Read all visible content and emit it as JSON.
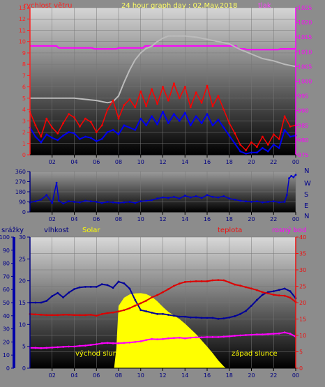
{
  "chart_data": [
    {
      "type": "line",
      "title": "24 hour graph day : 02.May.2018",
      "x_ticks": [
        "02",
        "04",
        "06",
        "08",
        "10",
        "12",
        "14",
        "16",
        "18",
        "20",
        "22",
        "00"
      ],
      "left_axis": {
        "label": "rychlost větru",
        "ticks": [
          0,
          1,
          2,
          3,
          4,
          5,
          6,
          7,
          8,
          9,
          10,
          11,
          12,
          13
        ],
        "ylim": [
          0,
          13
        ]
      },
      "right_axis": {
        "label": "tlak",
        "ticks": [
          975,
          980,
          985,
          990,
          995,
          1000,
          1005,
          1010,
          1015,
          1020,
          1025
        ],
        "ylim": [
          975,
          1025
        ]
      },
      "series": [
        {
          "name": "tlak",
          "color": "#ff00ff",
          "axis": "right",
          "x": [
            0,
            2.4,
            2.6,
            5.6,
            5.8,
            7.8,
            8.0,
            10.2,
            10.4,
            18.6,
            18.8,
            19.4,
            19.6,
            22.4,
            22.6,
            24
          ],
          "y": [
            1012,
            1012,
            1011.3,
            1011.3,
            1011,
            1011,
            1011.3,
            1011.3,
            1012,
            1012,
            1011,
            1011,
            1010.7,
            1010.7,
            1011,
            1011
          ]
        },
        {
          "name": "",
          "color": "#bbbbbb",
          "axis": "left",
          "x": [
            0,
            1,
            2,
            3,
            4,
            5,
            6,
            7,
            7.5,
            8,
            8.5,
            9,
            9.5,
            10,
            10.5,
            11,
            11.5,
            12,
            12.5,
            13,
            14,
            15,
            16,
            17,
            18,
            19,
            20,
            21,
            22,
            23,
            24
          ],
          "y": [
            5.0,
            5.0,
            5.0,
            5.0,
            5.0,
            4.9,
            4.8,
            4.6,
            4.7,
            5.2,
            6.4,
            7.5,
            8.4,
            9.0,
            9.4,
            9.6,
            10.0,
            10.3,
            10.5,
            10.5,
            10.5,
            10.4,
            10.2,
            10.0,
            9.8,
            9.3,
            8.9,
            8.5,
            8.3,
            8.0,
            7.8
          ]
        },
        {
          "name": "",
          "color": "#ff0000",
          "axis": "left",
          "x": [
            0,
            0.5,
            1,
            1.5,
            2,
            2.5,
            3,
            3.5,
            4,
            4.5,
            5,
            5.5,
            6,
            6.5,
            7,
            7.5,
            8,
            8.5,
            9,
            9.5,
            10,
            10.5,
            11,
            11.5,
            12,
            12.5,
            13,
            13.5,
            14,
            14.5,
            15,
            15.5,
            16,
            16.5,
            17,
            17.5,
            18,
            18.5,
            19,
            19.5,
            20,
            20.5,
            21,
            21.5,
            22,
            22.5,
            23,
            23.5,
            24
          ],
          "y": [
            3.8,
            2.6,
            1.6,
            3.2,
            2.4,
            1.9,
            2.8,
            3.6,
            3.3,
            2.5,
            3.2,
            2.9,
            2.0,
            2.6,
            4.0,
            4.8,
            3.2,
            4.4,
            4.9,
            4.2,
            5.6,
            4.3,
            5.8,
            4.5,
            6.0,
            4.8,
            6.3,
            5.0,
            6.0,
            4.2,
            5.5,
            4.6,
            6.1,
            4.3,
            5.2,
            4.0,
            2.8,
            1.9,
            0.9,
            0.4,
            1.1,
            0.7,
            1.6,
            0.9,
            1.8,
            1.4,
            3.4,
            2.5,
            2.6
          ]
        },
        {
          "name": "",
          "color": "#0000ee",
          "axis": "left",
          "x": [
            0,
            0.5,
            1,
            1.5,
            2,
            2.5,
            3,
            3.5,
            4,
            4.5,
            5,
            5.5,
            6,
            6.5,
            7,
            7.5,
            8,
            8.5,
            9,
            9.5,
            10,
            10.5,
            11,
            11.5,
            12,
            12.5,
            13,
            13.5,
            14,
            14.5,
            15,
            15.5,
            16,
            16.5,
            17,
            17.5,
            18,
            18.5,
            19,
            19.5,
            20,
            20.5,
            21,
            21.5,
            22,
            22.5,
            23,
            23.5,
            24
          ],
          "y": [
            2.4,
            1.6,
            1.1,
            1.8,
            1.5,
            1.3,
            1.7,
            2.0,
            1.9,
            1.4,
            1.6,
            1.5,
            1.2,
            1.4,
            2.0,
            2.2,
            1.8,
            2.6,
            2.4,
            2.2,
            3.2,
            2.6,
            3.4,
            2.7,
            3.8,
            2.8,
            3.6,
            3.0,
            3.7,
            2.6,
            3.4,
            2.8,
            3.6,
            2.6,
            3.1,
            2.4,
            1.7,
            1.0,
            0.3,
            0.1,
            0.2,
            0.2,
            0.6,
            0.3,
            0.9,
            0.6,
            2.2,
            1.6,
            1.7
          ]
        }
      ]
    },
    {
      "type": "line",
      "x_ticks": [
        "02",
        "04",
        "06",
        "08",
        "10",
        "12",
        "14",
        "16",
        "18",
        "20",
        "22",
        "00"
      ],
      "left_axis": {
        "ticks": [
          0,
          90,
          180,
          270,
          360
        ],
        "ylim": [
          0,
          360
        ]
      },
      "direction_labels": [
        "N",
        "W",
        "S",
        "E",
        "N"
      ],
      "series": [
        {
          "name": "",
          "color": "#0000cc",
          "x": [
            0,
            0.5,
            1,
            1.5,
            2,
            2.4,
            2.6,
            3,
            3.5,
            4,
            4.5,
            5,
            5.5,
            6,
            6.5,
            7,
            7.5,
            8,
            8.5,
            9,
            9.5,
            10,
            10.5,
            11,
            11.5,
            12,
            12.5,
            13,
            13.5,
            14,
            14.5,
            15,
            15.5,
            16,
            16.5,
            17,
            17.5,
            18,
            18.5,
            19,
            19.5,
            20,
            20.5,
            21,
            21.5,
            22,
            22.5,
            23,
            23.2,
            23.4,
            23.6,
            23.8,
            24
          ],
          "y": [
            85,
            95,
            110,
            150,
            80,
            260,
            100,
            75,
            95,
            90,
            85,
            100,
            95,
            90,
            80,
            90,
            85,
            80,
            85,
            90,
            80,
            95,
            100,
            105,
            120,
            130,
            125,
            135,
            120,
            145,
            130,
            140,
            125,
            150,
            135,
            130,
            140,
            120,
            110,
            100,
            95,
            90,
            95,
            85,
            90,
            95,
            85,
            90,
            150,
            300,
            320,
            310,
            330
          ]
        }
      ]
    },
    {
      "type": "area",
      "x_ticks": [
        "02",
        "04",
        "06",
        "08",
        "10",
        "12",
        "14",
        "16",
        "18",
        "20",
        "22",
        "00"
      ],
      "axes": [
        {
          "label": "srážky",
          "ticks": [
            0,
            10,
            20,
            30,
            40,
            50,
            60,
            70,
            80,
            90,
            100
          ],
          "ylim": [
            0,
            100
          ]
        },
        {
          "label": "vlhkost",
          "ticks": [
            0,
            5,
            10,
            15,
            20,
            25,
            30
          ],
          "ylim": [
            0,
            30
          ]
        },
        {
          "label": "Solar"
        },
        {
          "label": "teplota",
          "ticks": [
            0,
            5,
            10,
            15,
            20,
            25,
            30,
            35,
            40
          ],
          "ylim": [
            0,
            40
          ]
        },
        {
          "label": "rosný bod"
        }
      ],
      "annotations": [
        "východ slunce",
        "západ slunce"
      ],
      "series": [
        {
          "name": "Solar",
          "color": "#ffff00",
          "axis": "teplota",
          "x": [
            7.6,
            7.8,
            8.0,
            8.5,
            9.0,
            9.5,
            10.0,
            10.5,
            11.0,
            11.5,
            12.0,
            12.5,
            13.0,
            13.5,
            14.0,
            14.5,
            15.0,
            15.5,
            16.0,
            16.5,
            17.0,
            17.5,
            17.7
          ],
          "y": [
            0,
            6,
            19,
            21.5,
            22.5,
            22.8,
            22.9,
            22.6,
            21.8,
            20.4,
            18.7,
            17.2,
            16.1,
            15.0,
            13.6,
            12.0,
            10.4,
            8.5,
            6.6,
            4.6,
            2.4,
            0.6,
            0
          ]
        },
        {
          "name": "vlhkost",
          "color": "#000099",
          "axis": "vlhkost",
          "x": [
            0,
            0.5,
            1,
            1.5,
            2,
            2.5,
            3,
            3.5,
            4,
            4.5,
            5,
            5.5,
            6,
            6.5,
            7,
            7.5,
            8,
            8.5,
            9,
            9.5,
            10,
            10.5,
            11,
            11.5,
            12,
            12.5,
            13,
            13.5,
            14,
            14.5,
            15,
            15.5,
            16,
            16.5,
            17,
            17.5,
            18,
            18.5,
            19,
            19.5,
            20,
            20.5,
            21,
            21.5,
            22,
            22.5,
            23,
            23.5,
            24
          ],
          "y": [
            15,
            15,
            15,
            15.4,
            16.5,
            17.2,
            16.2,
            17.3,
            18.1,
            18.5,
            18.6,
            18.6,
            18.6,
            19.2,
            19.0,
            18.4,
            19.8,
            19.4,
            18.2,
            15.6,
            13.3,
            13.0,
            12.7,
            12.4,
            12.4,
            12.2,
            12.0,
            11.8,
            11.8,
            11.6,
            11.6,
            11.5,
            11.5,
            11.5,
            11.3,
            11.4,
            11.6,
            11.9,
            12.4,
            13.1,
            14.3,
            15.6,
            16.8,
            17.4,
            17.6,
            17.9,
            18.2,
            17.6,
            16.0
          ]
        },
        {
          "name": "teplota",
          "color": "#dd0000",
          "axis": "teplota",
          "x": [
            0,
            0.5,
            1,
            1.5,
            2,
            2.5,
            3,
            3.5,
            4,
            4.5,
            5,
            5.5,
            6,
            6.5,
            7,
            7.5,
            8,
            8.5,
            9,
            9.5,
            10,
            10.5,
            11,
            11.5,
            12,
            12.5,
            13,
            13.5,
            14,
            14.5,
            15,
            15.5,
            16,
            16.5,
            17,
            17.5,
            18,
            18.5,
            19,
            19.5,
            20,
            20.5,
            21,
            21.5,
            22,
            22.5,
            23,
            23.5,
            24
          ],
          "y": [
            16.5,
            16.4,
            16.3,
            16.2,
            16.2,
            16.2,
            16.3,
            16.3,
            16.2,
            16.2,
            16.2,
            16.3,
            16.0,
            16.5,
            16.8,
            17.0,
            17.3,
            17.7,
            18.3,
            19.1,
            19.8,
            20.6,
            21.6,
            22.3,
            23.2,
            24.1,
            25.1,
            25.8,
            26.3,
            26.4,
            26.5,
            26.5,
            26.5,
            26.8,
            26.9,
            26.8,
            26.2,
            25.5,
            25.2,
            24.7,
            24.3,
            23.8,
            23.2,
            22.8,
            22.4,
            22.2,
            22.1,
            21.5,
            20.2
          ]
        },
        {
          "name": "rosný bod",
          "color": "#ff00ff",
          "axis": "teplota",
          "x": [
            0,
            0.5,
            1,
            1.5,
            2,
            2.5,
            3,
            3.5,
            4,
            4.5,
            5,
            5.5,
            6,
            6.5,
            7,
            7.5,
            8,
            8.5,
            9,
            9.5,
            10,
            10.5,
            11,
            11.5,
            12,
            12.5,
            13,
            13.5,
            14,
            14.5,
            15,
            15.5,
            16,
            16.5,
            17,
            17.5,
            18,
            18.5,
            19,
            19.5,
            20,
            20.5,
            21,
            21.5,
            22,
            22.5,
            23,
            23.5,
            24
          ],
          "y": [
            6.2,
            6.2,
            6.1,
            6.2,
            6.3,
            6.4,
            6.5,
            6.6,
            6.6,
            6.8,
            6.9,
            7.1,
            7.3,
            7.6,
            7.7,
            7.6,
            7.6,
            7.7,
            7.8,
            8.0,
            8.2,
            8.6,
            8.9,
            8.8,
            8.9,
            9.1,
            9.2,
            9.3,
            9.1,
            9.3,
            9.4,
            9.4,
            9.5,
            9.5,
            9.5,
            9.6,
            9.7,
            9.9,
            10.0,
            10.1,
            10.2,
            10.3,
            10.3,
            10.4,
            10.5,
            10.6,
            10.9,
            10.5,
            9.6
          ]
        }
      ]
    }
  ]
}
